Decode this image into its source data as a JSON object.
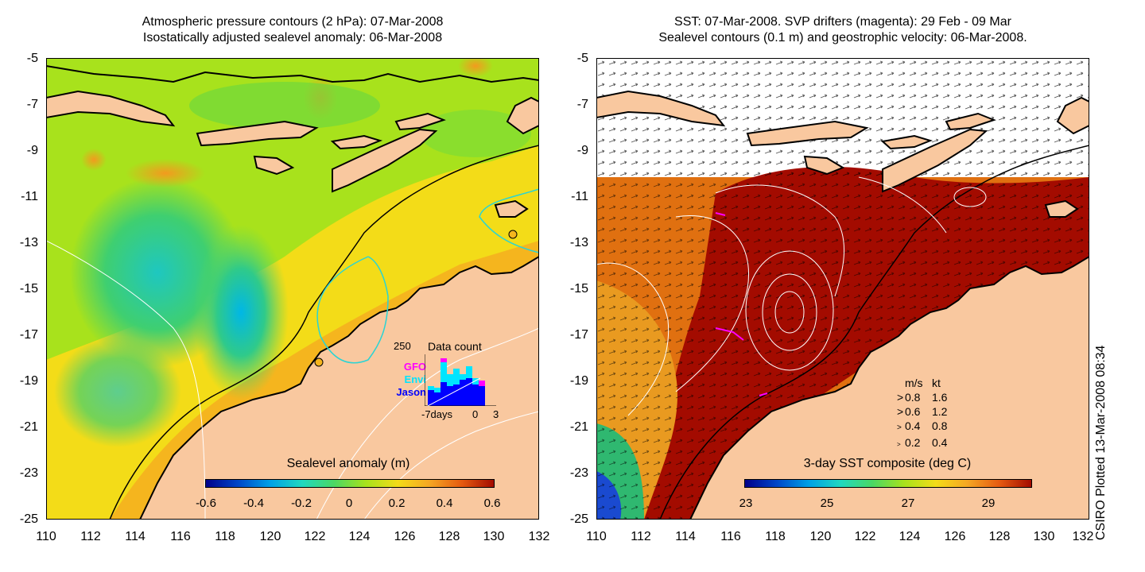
{
  "left_panel": {
    "title_line1": "Atmospheric pressure contours (2 hPa): 07-Mar-2008",
    "title_line2": "Isostatically adjusted sealevel anomaly: 06-Mar-2008",
    "colorbar": {
      "title": "Sealevel anomaly (m)",
      "ticks": [
        "-0.6",
        "-0.4",
        "-0.2",
        "0",
        "0.2",
        "0.4",
        "0.6"
      ]
    },
    "inset": {
      "title": "Data count",
      "ymax_label": "250",
      "legend": [
        {
          "label": "GFO",
          "color": "#ff00ff"
        },
        {
          "label": "Envi",
          "color": "#00e5ff"
        },
        {
          "label": "Jason",
          "color": "#0000ff"
        }
      ],
      "x_labels": [
        "-7days",
        "0",
        "3"
      ]
    }
  },
  "right_panel": {
    "title_line1": "SST: 07-Mar-2008. SVP drifters (magenta): 29 Feb - 09 Mar",
    "title_line2": "Sealevel contours (0.1 m) and geostrophic velocity: 06-Mar-2008.",
    "colorbar": {
      "title": "3-day SST composite (deg C)",
      "ticks": [
        "23",
        "25",
        "27",
        "29"
      ]
    },
    "velocity_legend": {
      "header_ms": "m/s",
      "header_kt": "kt",
      "rows": [
        {
          "ms": "0.8",
          "kt": "1.6"
        },
        {
          "ms": "0.6",
          "kt": "1.2"
        },
        {
          "ms": "0.4",
          "kt": "0.8"
        },
        {
          "ms": "0.2",
          "kt": "0.4"
        }
      ]
    }
  },
  "y_axis_labels": [
    "-5",
    "-7",
    "-9",
    "-11",
    "-13",
    "-15",
    "-17",
    "-19",
    "-21",
    "-23",
    "-25"
  ],
  "x_axis_labels": [
    "110",
    "112",
    "114",
    "116",
    "118",
    "120",
    "122",
    "124",
    "126",
    "128",
    "130",
    "132"
  ],
  "credit": "CSIRO Plotted 13-Mar-2008 08:34",
  "colors": {
    "land": "#f9c89f",
    "ocean_green": "#7fe02a",
    "ocean_yellow": "#f5e51a",
    "ocean_orange": "#f5a623",
    "sst_red": "#a30b00",
    "contour_cyan": "#2ad4d4"
  }
}
